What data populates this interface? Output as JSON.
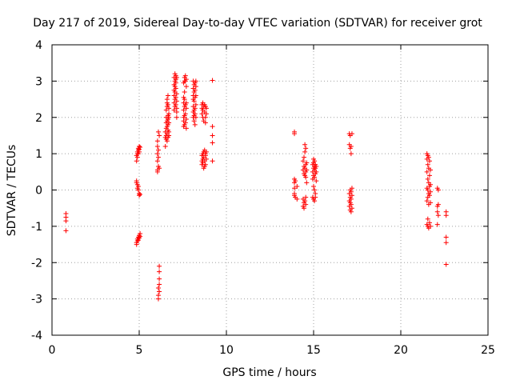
{
  "chart_data": {
    "type": "scatter",
    "title": "Day 217 of 2019, Sidereal Day-to-day VTEC variation (SDTVAR) for receiver grot",
    "xlabel": "GPS time / hours",
    "ylabel": "SDTVAR / TECUs",
    "xlim": [
      0,
      25
    ],
    "ylim": [
      -4,
      4
    ],
    "xticks": [
      0,
      5,
      10,
      15,
      20,
      25
    ],
    "xtick_labels": [
      "0",
      "5",
      "10",
      "15",
      "20",
      "25"
    ],
    "yticks": [
      -4,
      -3,
      -2,
      -1,
      0,
      1,
      2,
      3,
      4
    ],
    "ytick_labels": [
      "-4",
      "-3",
      "-2",
      "-1",
      "0",
      "1",
      "2",
      "3",
      "4"
    ],
    "grid": true,
    "marker": "+",
    "color": "#ff0000",
    "series": [
      {
        "name": "SDTVAR",
        "points": [
          [
            0.8,
            -0.65
          ],
          [
            0.8,
            -0.75
          ],
          [
            0.8,
            -0.85
          ],
          [
            0.8,
            -1.12
          ],
          [
            4.85,
            0.95
          ],
          [
            4.85,
            0.8
          ],
          [
            4.85,
            0.25
          ],
          [
            4.85,
            0.2
          ],
          [
            4.85,
            -1.45
          ],
          [
            4.85,
            -1.5
          ],
          [
            4.9,
            1.05
          ],
          [
            4.9,
            1.0
          ],
          [
            4.9,
            0.9
          ],
          [
            4.9,
            0.15
          ],
          [
            4.9,
            0.05
          ],
          [
            4.9,
            -1.35
          ],
          [
            4.9,
            -1.4
          ],
          [
            4.95,
            1.15
          ],
          [
            4.95,
            1.1
          ],
          [
            4.95,
            1.0
          ],
          [
            4.95,
            0.1
          ],
          [
            4.95,
            0.0
          ],
          [
            4.95,
            -1.3
          ],
          [
            4.95,
            -1.38
          ],
          [
            5.0,
            1.2
          ],
          [
            5.0,
            1.12
          ],
          [
            5.0,
            1.05
          ],
          [
            5.0,
            -0.1
          ],
          [
            5.0,
            -0.15
          ],
          [
            5.0,
            -1.25
          ],
          [
            5.0,
            -1.32
          ],
          [
            5.05,
            1.18
          ],
          [
            5.05,
            -0.12
          ],
          [
            5.05,
            -1.2
          ],
          [
            5.05,
            -1.28
          ],
          [
            6.05,
            1.35
          ],
          [
            6.05,
            1.2
          ],
          [
            6.05,
            1.0
          ],
          [
            6.05,
            0.8
          ],
          [
            6.05,
            0.55
          ],
          [
            6.05,
            0.5
          ],
          [
            6.1,
            1.6
          ],
          [
            6.1,
            1.1
          ],
          [
            6.1,
            0.9
          ],
          [
            6.1,
            0.65
          ],
          [
            6.1,
            -2.9
          ],
          [
            6.1,
            -3.0
          ],
          [
            6.1,
            -2.7
          ],
          [
            6.15,
            1.5
          ],
          [
            6.15,
            0.6
          ],
          [
            6.15,
            -2.1
          ],
          [
            6.15,
            -2.25
          ],
          [
            6.15,
            -2.45
          ],
          [
            6.15,
            -2.6
          ],
          [
            6.15,
            -2.8
          ],
          [
            6.5,
            1.2
          ],
          [
            6.5,
            1.45
          ],
          [
            6.5,
            1.6
          ],
          [
            6.55,
            1.4
          ],
          [
            6.55,
            1.5
          ],
          [
            6.55,
            1.7
          ],
          [
            6.55,
            1.85
          ],
          [
            6.55,
            2.0
          ],
          [
            6.55,
            2.2
          ],
          [
            6.6,
            1.35
          ],
          [
            6.6,
            1.55
          ],
          [
            6.6,
            1.75
          ],
          [
            6.6,
            1.9
          ],
          [
            6.6,
            2.3
          ],
          [
            6.6,
            2.4
          ],
          [
            6.6,
            2.5
          ],
          [
            6.65,
            1.45
          ],
          [
            6.65,
            1.65
          ],
          [
            6.65,
            1.8
          ],
          [
            6.65,
            1.95
          ],
          [
            6.65,
            2.05
          ],
          [
            6.65,
            2.35
          ],
          [
            6.65,
            2.6
          ],
          [
            6.7,
            1.5
          ],
          [
            6.7,
            1.6
          ],
          [
            6.7,
            1.85
          ],
          [
            6.7,
            2.0
          ],
          [
            6.7,
            2.1
          ],
          [
            6.7,
            2.25
          ],
          [
            7.0,
            2.2
          ],
          [
            7.0,
            2.4
          ],
          [
            7.0,
            2.6
          ],
          [
            7.0,
            2.75
          ],
          [
            7.0,
            2.9
          ],
          [
            7.0,
            3.1
          ],
          [
            7.05,
            2.3
          ],
          [
            7.05,
            2.5
          ],
          [
            7.05,
            2.7
          ],
          [
            7.05,
            2.85
          ],
          [
            7.05,
            3.0
          ],
          [
            7.05,
            3.2
          ],
          [
            7.1,
            2.35
          ],
          [
            7.1,
            2.55
          ],
          [
            7.1,
            2.8
          ],
          [
            7.1,
            2.95
          ],
          [
            7.1,
            3.05
          ],
          [
            7.1,
            3.15
          ],
          [
            7.15,
            2.25
          ],
          [
            7.15,
            2.45
          ],
          [
            7.15,
            2.65
          ],
          [
            7.15,
            3.1
          ],
          [
            7.15,
            2.0
          ],
          [
            7.15,
            2.15
          ],
          [
            7.55,
            1.75
          ],
          [
            7.55,
            1.9
          ],
          [
            7.55,
            2.0
          ],
          [
            7.55,
            2.2
          ],
          [
            7.55,
            2.4
          ],
          [
            7.55,
            2.55
          ],
          [
            7.55,
            2.95
          ],
          [
            7.6,
            1.8
          ],
          [
            7.6,
            2.05
          ],
          [
            7.6,
            2.3
          ],
          [
            7.6,
            2.5
          ],
          [
            7.6,
            2.7
          ],
          [
            7.6,
            3.0
          ],
          [
            7.6,
            3.1
          ],
          [
            7.65,
            1.85
          ],
          [
            7.65,
            2.1
          ],
          [
            7.65,
            2.35
          ],
          [
            7.65,
            3.0
          ],
          [
            7.65,
            3.15
          ],
          [
            7.7,
            1.7
          ],
          [
            7.7,
            1.95
          ],
          [
            7.7,
            2.25
          ],
          [
            7.7,
            2.4
          ],
          [
            7.7,
            2.85
          ],
          [
            7.7,
            3.05
          ],
          [
            8.1,
            2.0
          ],
          [
            8.1,
            2.15
          ],
          [
            8.1,
            2.3
          ],
          [
            8.1,
            2.5
          ],
          [
            8.1,
            2.6
          ],
          [
            8.1,
            2.8
          ],
          [
            8.1,
            3.0
          ],
          [
            8.15,
            1.9
          ],
          [
            8.15,
            2.05
          ],
          [
            8.15,
            2.2
          ],
          [
            8.15,
            2.45
          ],
          [
            8.15,
            2.7
          ],
          [
            8.15,
            2.9
          ],
          [
            8.2,
            1.8
          ],
          [
            8.2,
            2.1
          ],
          [
            8.2,
            2.25
          ],
          [
            8.2,
            2.55
          ],
          [
            8.2,
            2.75
          ],
          [
            8.2,
            2.95
          ],
          [
            8.25,
            2.0
          ],
          [
            8.25,
            2.35
          ],
          [
            8.25,
            2.6
          ],
          [
            8.25,
            2.85
          ],
          [
            8.25,
            3.0
          ],
          [
            8.6,
            0.7
          ],
          [
            8.6,
            0.8
          ],
          [
            8.6,
            0.95
          ],
          [
            8.6,
            2.1
          ],
          [
            8.6,
            2.25
          ],
          [
            8.6,
            2.35
          ],
          [
            8.65,
            0.75
          ],
          [
            8.65,
            0.85
          ],
          [
            8.65,
            1.0
          ],
          [
            8.65,
            2.0
          ],
          [
            8.65,
            2.2
          ],
          [
            8.65,
            2.4
          ],
          [
            8.7,
            0.6
          ],
          [
            8.7,
            0.9
          ],
          [
            8.7,
            1.05
          ],
          [
            8.7,
            1.9
          ],
          [
            8.7,
            2.3
          ],
          [
            8.75,
            0.65
          ],
          [
            8.75,
            0.8
          ],
          [
            8.75,
            1.1
          ],
          [
            8.75,
            2.15
          ],
          [
            8.75,
            2.35
          ],
          [
            8.8,
            0.7
          ],
          [
            8.8,
            0.95
          ],
          [
            8.8,
            1.0
          ],
          [
            8.8,
            1.85
          ],
          [
            8.8,
            2.0
          ],
          [
            8.8,
            2.3
          ],
          [
            8.85,
            0.85
          ],
          [
            8.85,
            1.05
          ],
          [
            8.85,
            2.1
          ],
          [
            8.85,
            2.25
          ],
          [
            9.2,
            3.02
          ],
          [
            9.2,
            1.75
          ],
          [
            9.2,
            1.5
          ],
          [
            9.2,
            1.3
          ],
          [
            9.2,
            0.8
          ],
          [
            13.9,
            1.6
          ],
          [
            13.9,
            1.55
          ],
          [
            13.9,
            0.3
          ],
          [
            13.9,
            0.2
          ],
          [
            13.9,
            0.05
          ],
          [
            13.9,
            -0.1
          ],
          [
            13.9,
            -0.15
          ],
          [
            13.95,
            0.25
          ],
          [
            13.95,
            -0.2
          ],
          [
            14.05,
            0.1
          ],
          [
            14.05,
            -0.25
          ],
          [
            14.4,
            0.55
          ],
          [
            14.4,
            0.8
          ],
          [
            14.4,
            -0.25
          ],
          [
            14.4,
            -0.45
          ],
          [
            14.45,
            0.45
          ],
          [
            14.45,
            0.65
          ],
          [
            14.45,
            0.9
          ],
          [
            14.45,
            -0.35
          ],
          [
            14.45,
            -0.5
          ],
          [
            14.5,
            0.4
          ],
          [
            14.5,
            0.6
          ],
          [
            14.5,
            1.05
          ],
          [
            14.5,
            1.25
          ],
          [
            14.5,
            -0.3
          ],
          [
            14.55,
            0.35
          ],
          [
            14.55,
            0.5
          ],
          [
            14.55,
            0.7
          ],
          [
            14.55,
            1.15
          ],
          [
            14.55,
            -0.2
          ],
          [
            14.55,
            -0.4
          ],
          [
            14.6,
            0.55
          ],
          [
            14.6,
            0.75
          ],
          [
            14.6,
            0.2
          ],
          [
            14.95,
            0.3
          ],
          [
            14.95,
            0.5
          ],
          [
            14.95,
            0.7
          ],
          [
            14.95,
            -0.2
          ],
          [
            15.0,
            0.4
          ],
          [
            15.0,
            0.6
          ],
          [
            15.0,
            0.75
          ],
          [
            15.0,
            0.85
          ],
          [
            15.0,
            0.1
          ],
          [
            15.0,
            -0.25
          ],
          [
            15.05,
            0.35
          ],
          [
            15.05,
            0.55
          ],
          [
            15.05,
            0.65
          ],
          [
            15.05,
            0.8
          ],
          [
            15.05,
            0.0
          ],
          [
            15.05,
            -0.3
          ],
          [
            15.1,
            0.45
          ],
          [
            15.1,
            0.6
          ],
          [
            15.1,
            0.7
          ],
          [
            15.1,
            -0.1
          ],
          [
            15.1,
            -0.2
          ],
          [
            15.15,
            0.5
          ],
          [
            15.15,
            0.65
          ],
          [
            15.15,
            0.25
          ],
          [
            17.05,
            1.55
          ],
          [
            17.05,
            1.25
          ],
          [
            17.05,
            -0.1
          ],
          [
            17.05,
            -0.3
          ],
          [
            17.05,
            -0.45
          ],
          [
            17.1,
            1.5
          ],
          [
            17.1,
            1.15
          ],
          [
            17.1,
            0.0
          ],
          [
            17.1,
            -0.2
          ],
          [
            17.1,
            -0.35
          ],
          [
            17.1,
            -0.55
          ],
          [
            17.15,
            1.2
          ],
          [
            17.15,
            1.0
          ],
          [
            17.15,
            -0.05
          ],
          [
            17.15,
            -0.25
          ],
          [
            17.15,
            -0.4
          ],
          [
            17.15,
            -0.6
          ],
          [
            17.2,
            1.55
          ],
          [
            17.2,
            0.05
          ],
          [
            17.2,
            -0.15
          ],
          [
            17.2,
            -0.5
          ],
          [
            21.5,
            1.0
          ],
          [
            21.5,
            0.85
          ],
          [
            21.5,
            0.5
          ],
          [
            21.5,
            0.05
          ],
          [
            21.5,
            -0.3
          ],
          [
            21.5,
            -0.95
          ],
          [
            21.55,
            0.95
          ],
          [
            21.55,
            0.7
          ],
          [
            21.55,
            0.3
          ],
          [
            21.55,
            0.0
          ],
          [
            21.55,
            -0.2
          ],
          [
            21.55,
            -0.8
          ],
          [
            21.55,
            -1.0
          ],
          [
            21.6,
            0.9
          ],
          [
            21.6,
            0.6
          ],
          [
            21.6,
            0.2
          ],
          [
            21.6,
            -0.1
          ],
          [
            21.6,
            -0.4
          ],
          [
            21.6,
            -1.05
          ],
          [
            21.65,
            0.8
          ],
          [
            21.65,
            0.4
          ],
          [
            21.65,
            0.1
          ],
          [
            21.65,
            -0.15
          ],
          [
            21.65,
            -0.9
          ],
          [
            21.7,
            0.55
          ],
          [
            21.7,
            0.15
          ],
          [
            21.7,
            -0.05
          ],
          [
            21.7,
            -0.35
          ],
          [
            21.7,
            -1.0
          ],
          [
            22.1,
            0.05
          ],
          [
            22.1,
            -0.45
          ],
          [
            22.1,
            -0.6
          ],
          [
            22.1,
            -0.95
          ],
          [
            22.15,
            0.0
          ],
          [
            22.15,
            -0.4
          ],
          [
            22.15,
            -0.7
          ],
          [
            22.6,
            -0.6
          ],
          [
            22.6,
            -0.7
          ],
          [
            22.6,
            -1.3
          ],
          [
            22.6,
            -1.45
          ],
          [
            22.6,
            -2.05
          ]
        ]
      }
    ]
  }
}
